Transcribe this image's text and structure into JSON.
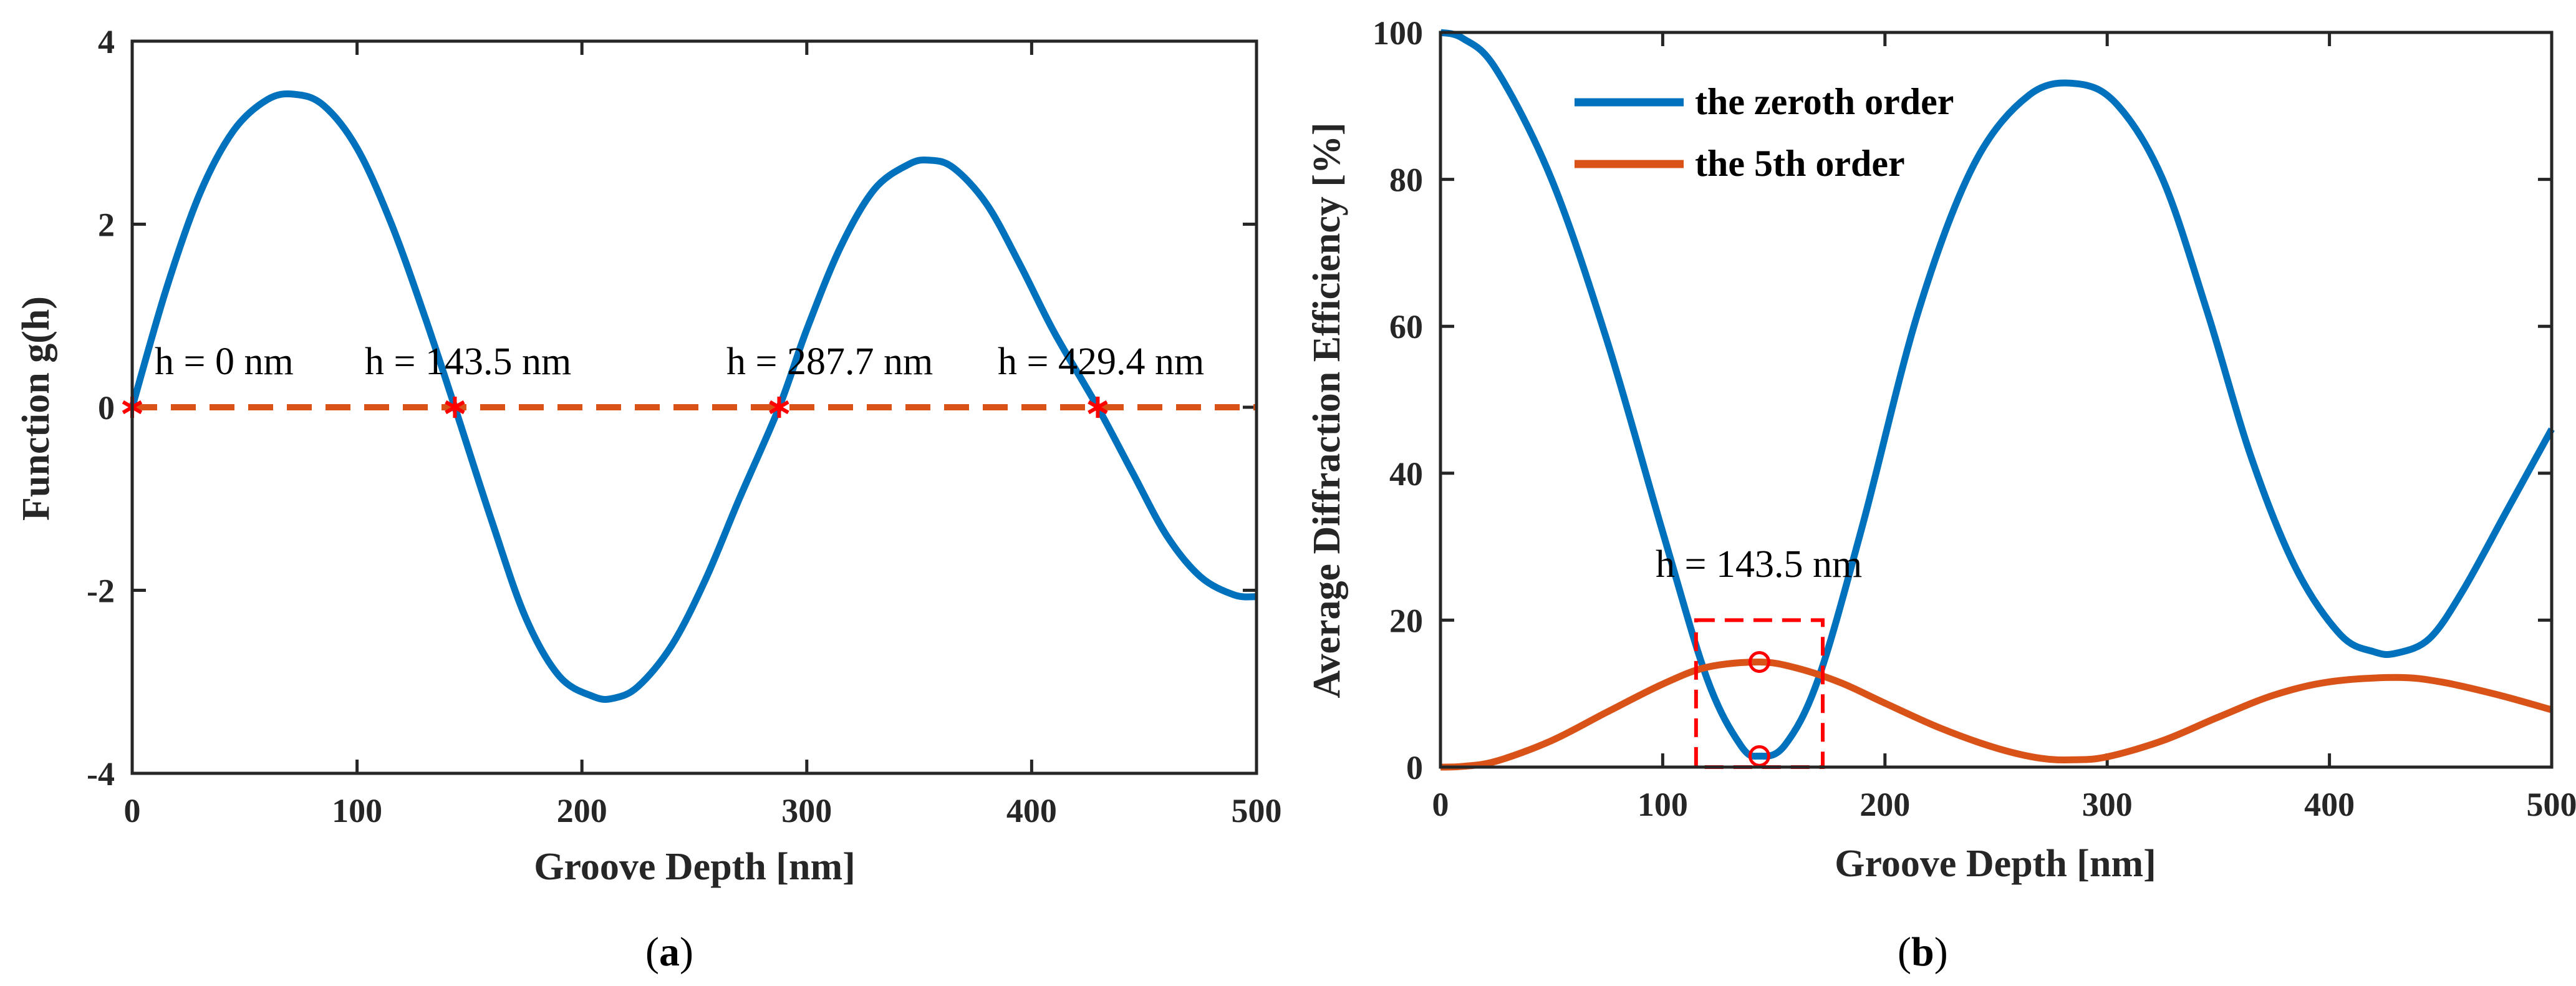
{
  "chart_data": [
    {
      "id": "a",
      "type": "line",
      "panel_label": "a",
      "xlabel": "Groove Depth [nm]",
      "ylabel": "Function g(h)",
      "xlim": [
        0,
        500
      ],
      "ylim": [
        -4,
        4
      ],
      "xticks": [
        0,
        100,
        200,
        300,
        400,
        500
      ],
      "yticks": [
        -4,
        -2,
        0,
        2,
        4
      ],
      "series": [
        {
          "name": "g(h)",
          "color": "#0072BD",
          "style": "solid",
          "points": [
            [
              0,
              0
            ],
            [
              15,
              1.28
            ],
            [
              30,
              2.33
            ],
            [
              45,
              3.02
            ],
            [
              60,
              3.36
            ],
            [
              72,
              3.42
            ],
            [
              85,
              3.3
            ],
            [
              100,
              2.83
            ],
            [
              115,
              2.02
            ],
            [
              130,
              1.0
            ],
            [
              143.5,
              0
            ],
            [
              160,
              -1.25
            ],
            [
              175,
              -2.3
            ],
            [
              190,
              -2.94
            ],
            [
              205,
              -3.16
            ],
            [
              214,
              -3.18
            ],
            [
              225,
              -3.05
            ],
            [
              240,
              -2.6
            ],
            [
              255,
              -1.88
            ],
            [
              270,
              -1.0
            ],
            [
              287.7,
              0
            ],
            [
              300,
              0.85
            ],
            [
              315,
              1.75
            ],
            [
              330,
              2.38
            ],
            [
              345,
              2.65
            ],
            [
              354,
              2.7
            ],
            [
              365,
              2.62
            ],
            [
              380,
              2.22
            ],
            [
              395,
              1.55
            ],
            [
              410,
              0.82
            ],
            [
              429.4,
              0
            ],
            [
              445,
              -0.72
            ],
            [
              460,
              -1.4
            ],
            [
              475,
              -1.85
            ],
            [
              490,
              -2.05
            ],
            [
              500,
              -2.07
            ]
          ]
        },
        {
          "name": "zero line",
          "color": "#D95319",
          "style": "dashed",
          "points": [
            [
              0,
              0
            ],
            [
              500,
              0
            ]
          ]
        }
      ],
      "markers": [
        {
          "x": 0,
          "y": 0,
          "label": "h = 0 nm"
        },
        {
          "x": 143.5,
          "y": 0,
          "label": "h = 143.5 nm"
        },
        {
          "x": 287.7,
          "y": 0,
          "label": "h = 287.7 nm"
        },
        {
          "x": 429.4,
          "y": 0,
          "label": "h = 429.4 nm"
        }
      ],
      "marker_color": "#FF0000"
    },
    {
      "id": "b",
      "type": "line",
      "panel_label": "b",
      "xlabel": "Groove Depth [nm]",
      "ylabel": "Average Diffraction Efficiency [%]",
      "xlim": [
        0,
        500
      ],
      "ylim": [
        0,
        100
      ],
      "xticks": [
        0,
        100,
        200,
        300,
        400,
        500
      ],
      "yticks": [
        0,
        20,
        40,
        60,
        80,
        100
      ],
      "legend_position": "top-left",
      "series": [
        {
          "name": "the zeroth order",
          "color": "#0072BD",
          "style": "solid",
          "points": [
            [
              0,
              100
            ],
            [
              10,
              99.2
            ],
            [
              25,
              95
            ],
            [
              50,
              80
            ],
            [
              75,
              58
            ],
            [
              100,
              32
            ],
            [
              120,
              12
            ],
            [
              135,
              3
            ],
            [
              143.5,
              1.5
            ],
            [
              155,
              3
            ],
            [
              170,
              12
            ],
            [
              190,
              33
            ],
            [
              215,
              62
            ],
            [
              240,
              82
            ],
            [
              265,
              91.5
            ],
            [
              287,
              93
            ],
            [
              305,
              90
            ],
            [
              325,
              80
            ],
            [
              345,
              62
            ],
            [
              365,
              42
            ],
            [
              385,
              27
            ],
            [
              405,
              18
            ],
            [
              420,
              15.7
            ],
            [
              430,
              15.5
            ],
            [
              445,
              17.5
            ],
            [
              460,
              24
            ],
            [
              480,
              35
            ],
            [
              500,
              46
            ]
          ]
        },
        {
          "name": "the 5th order",
          "color": "#D95319",
          "style": "solid",
          "points": [
            [
              0,
              0
            ],
            [
              10,
              0.1
            ],
            [
              25,
              0.8
            ],
            [
              50,
              3.6
            ],
            [
              75,
              7.5
            ],
            [
              100,
              11.3
            ],
            [
              120,
              13.6
            ],
            [
              143.5,
              14.3
            ],
            [
              160,
              13.5
            ],
            [
              180,
              11.5
            ],
            [
              200,
              8.7
            ],
            [
              225,
              5.3
            ],
            [
              250,
              2.6
            ],
            [
              270,
              1.2
            ],
            [
              285,
              1.0
            ],
            [
              300,
              1.4
            ],
            [
              325,
              3.6
            ],
            [
              350,
              6.8
            ],
            [
              375,
              9.8
            ],
            [
              400,
              11.6
            ],
            [
              430,
              12.2
            ],
            [
              450,
              11.6
            ],
            [
              475,
              9.9
            ],
            [
              500,
              7.8
            ]
          ]
        }
      ],
      "circle_markers": [
        {
          "x": 143.5,
          "y": 14.3
        },
        {
          "x": 143.5,
          "y": 1.5
        }
      ],
      "highlight_box": {
        "x0": 115,
        "x1": 172,
        "y0": 0,
        "y1": 20
      },
      "annotation": "h = 143.5 nm",
      "marker_color": "#FF0000"
    }
  ]
}
